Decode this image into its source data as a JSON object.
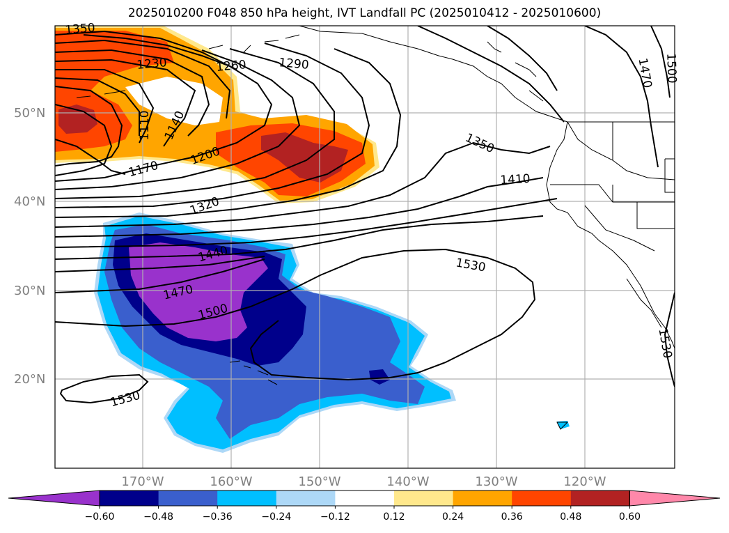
{
  "title": "2025010200 F048 850 hPa height, IVT Landfall PC (2025010412 - 2025010600)",
  "map": {
    "lat_labels": [
      "50°N",
      "40°N",
      "30°N",
      "20°N"
    ],
    "lon_labels": [
      "170°W",
      "160°W",
      "150°W",
      "140°W",
      "130°W",
      "120°W"
    ],
    "contour_labels": [
      "1350",
      "1230",
      "1260",
      "1290",
      "1110",
      "1140",
      "1170",
      "1200",
      "1350",
      "1410",
      "1320",
      "1440",
      "1470",
      "1500",
      "1530",
      "1530",
      "1470",
      "1500",
      "1530"
    ]
  },
  "colorbar": {
    "ticks": [
      "−0.60",
      "−0.48",
      "−0.36",
      "−0.24",
      "−0.12",
      "0.12",
      "0.24",
      "0.36",
      "0.48",
      "0.60"
    ],
    "colors": [
      "#9932cc",
      "#00008b",
      "#3a5fcd",
      "#00bfff",
      "#add8f7",
      "#ffffff",
      "#ffe88c",
      "#ffa500",
      "#ff4500",
      "#b22222",
      "#ff88aa"
    ]
  }
}
